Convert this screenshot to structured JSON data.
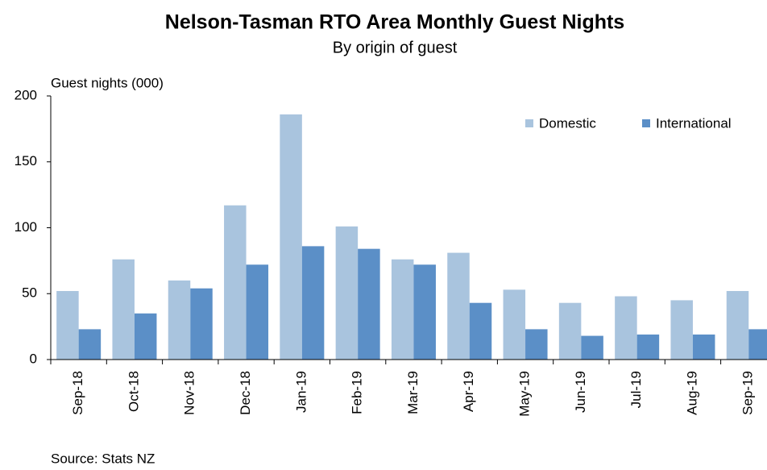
{
  "chart_data": {
    "type": "bar",
    "title": "Nelson-Tasman RTO Area Monthly Guest Nights",
    "subtitle": "By origin of guest",
    "y_label": "Guest nights (000)",
    "source": "Source: Stats NZ",
    "categories": [
      "Sep-18",
      "Oct-18",
      "Nov-18",
      "Dec-18",
      "Jan-19",
      "Feb-19",
      "Mar-19",
      "Apr-19",
      "May-19",
      "Jun-19",
      "Jul-19",
      "Aug-19",
      "Sep-19"
    ],
    "series": [
      {
        "name": "Domestic",
        "color": "#a9c4de",
        "values": [
          52,
          76,
          60,
          117,
          186,
          101,
          76,
          81,
          53,
          43,
          48,
          45,
          52
        ]
      },
      {
        "name": "International",
        "color": "#5b8fc7",
        "values": [
          23,
          35,
          54,
          72,
          86,
          84,
          72,
          43,
          23,
          18,
          19,
          19,
          23
        ]
      }
    ],
    "ylim": [
      0,
      200
    ],
    "yticks": [
      0,
      50,
      100,
      150,
      200
    ],
    "legend": "top-right"
  }
}
